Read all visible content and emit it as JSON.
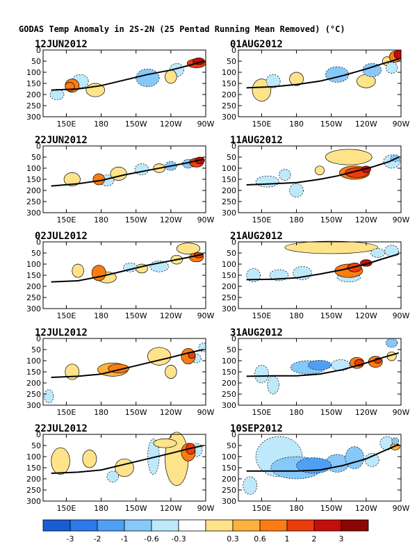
{
  "figure_title": "GODAS Temp Anomaly in 2S-2N (25 Pentad Running Mean Removed) (°C)",
  "colors": {
    "levels": [
      "#1a5cd4",
      "#2e79ea",
      "#4f9ff4",
      "#86c8f8",
      "#bde9fb",
      "#ffffff",
      "#ffe38a",
      "#fdb23e",
      "#fb7d12",
      "#eb3d0c",
      "#c40e0a",
      "#8c0606"
    ],
    "thermocline": "#000000"
  },
  "chart_data": {
    "type": "heatmap",
    "xlabel": "",
    "ylabel": "",
    "x_ticks": [
      "150E",
      "180",
      "150W",
      "120W",
      "90W"
    ],
    "x_tick_lon": [
      150,
      180,
      210,
      240,
      270
    ],
    "xlim": [
      130,
      270
    ],
    "y_ticks": [
      "0",
      "50",
      "100",
      "150",
      "200",
      "250",
      "300"
    ],
    "y_tick_values": [
      0,
      50,
      100,
      150,
      200,
      250,
      300
    ],
    "ylim": [
      0,
      300
    ],
    "colorbar": {
      "boundaries": [
        -3,
        -2,
        -1,
        -0.6,
        -0.3,
        0.3,
        0.6,
        1,
        2,
        3
      ],
      "labels": [
        "-3",
        "-2",
        "-1",
        "-0.6",
        "-0.3",
        "0.3",
        "0.6",
        "1",
        "2",
        "3"
      ]
    },
    "panels": [
      {
        "date": "12JUN2012",
        "thermocline": [
          [
            137,
            180
          ],
          [
            160,
            175
          ],
          [
            180,
            160
          ],
          [
            200,
            135
          ],
          [
            220,
            110
          ],
          [
            240,
            90
          ],
          [
            255,
            70
          ],
          [
            268,
            50
          ]
        ],
        "blobs": [
          [
            142,
            200,
            6,
            24,
            -0.5
          ],
          [
            162,
            140,
            7,
            30,
            -0.5
          ],
          [
            220,
            125,
            10,
            40,
            -1
          ],
          [
            245,
            90,
            6,
            30,
            -0.5
          ],
          [
            155,
            160,
            6,
            30,
            1
          ],
          [
            153,
            165,
            4,
            20,
            1.5
          ],
          [
            175,
            180,
            8,
            30,
            0.5
          ],
          [
            262,
            60,
            8,
            20,
            2.5
          ],
          [
            264,
            50,
            5,
            15,
            3.5
          ],
          [
            240,
            120,
            5,
            30,
            0.5
          ]
        ]
      },
      {
        "date": "01AUG2012",
        "thermocline": [
          [
            137,
            170
          ],
          [
            160,
            165
          ],
          [
            180,
            155
          ],
          [
            200,
            140
          ],
          [
            220,
            115
          ],
          [
            240,
            85
          ],
          [
            255,
            60
          ],
          [
            268,
            40
          ]
        ],
        "blobs": [
          [
            160,
            140,
            6,
            30,
            -0.6
          ],
          [
            215,
            110,
            10,
            35,
            -1
          ],
          [
            245,
            90,
            8,
            30,
            -1
          ],
          [
            262,
            80,
            5,
            25,
            -0.6
          ],
          [
            150,
            180,
            8,
            50,
            0.5
          ],
          [
            180,
            130,
            6,
            30,
            0.5
          ],
          [
            240,
            140,
            8,
            30,
            0.5
          ],
          [
            265,
            30,
            5,
            25,
            1
          ],
          [
            268,
            20,
            4,
            20,
            3
          ],
          [
            258,
            50,
            4,
            20,
            0.5
          ]
        ]
      },
      {
        "date": "22JUN2012",
        "thermocline": [
          [
            137,
            180
          ],
          [
            160,
            170
          ],
          [
            180,
            155
          ],
          [
            200,
            130
          ],
          [
            220,
            110
          ],
          [
            240,
            90
          ],
          [
            255,
            75
          ],
          [
            268,
            60
          ]
        ],
        "blobs": [
          [
            155,
            150,
            7,
            30,
            0.5
          ],
          [
            178,
            150,
            5,
            25,
            1
          ],
          [
            185,
            155,
            6,
            25,
            -0.5
          ],
          [
            215,
            105,
            6,
            25,
            -0.6
          ],
          [
            240,
            90,
            5,
            20,
            -1
          ],
          [
            195,
            125,
            7,
            30,
            0.5
          ],
          [
            230,
            100,
            5,
            20,
            0.5
          ],
          [
            262,
            75,
            6,
            20,
            2
          ],
          [
            265,
            65,
            4,
            15,
            3
          ],
          [
            255,
            80,
            5,
            20,
            -1
          ]
        ]
      },
      {
        "date": "11AUG2012",
        "thermocline": [
          [
            137,
            175
          ],
          [
            160,
            170
          ],
          [
            180,
            165
          ],
          [
            200,
            150
          ],
          [
            215,
            135
          ],
          [
            230,
            115
          ],
          [
            245,
            95
          ],
          [
            260,
            70
          ],
          [
            268,
            50
          ]
        ],
        "blobs": [
          [
            155,
            160,
            10,
            25,
            -0.5
          ],
          [
            170,
            130,
            5,
            25,
            -0.5
          ],
          [
            180,
            200,
            6,
            30,
            -0.5
          ],
          [
            225,
            50,
            20,
            35,
            0.5
          ],
          [
            230,
            120,
            13,
            30,
            1
          ],
          [
            232,
            120,
            10,
            22,
            2
          ],
          [
            240,
            105,
            4,
            15,
            3
          ],
          [
            262,
            70,
            7,
            30,
            -0.6
          ],
          [
            265,
            55,
            4,
            15,
            -1
          ],
          [
            200,
            110,
            4,
            20,
            0.5
          ]
        ]
      },
      {
        "date": "02JUL2012",
        "thermocline": [
          [
            137,
            180
          ],
          [
            160,
            175
          ],
          [
            180,
            155
          ],
          [
            200,
            130
          ],
          [
            220,
            105
          ],
          [
            240,
            85
          ],
          [
            255,
            70
          ],
          [
            268,
            55
          ]
        ],
        "blobs": [
          [
            160,
            130,
            5,
            30,
            0.5
          ],
          [
            178,
            140,
            6,
            35,
            1
          ],
          [
            185,
            160,
            8,
            25,
            0.5
          ],
          [
            205,
            115,
            6,
            20,
            -0.6
          ],
          [
            230,
            110,
            8,
            25,
            -0.6
          ],
          [
            215,
            120,
            5,
            20,
            0.5
          ],
          [
            245,
            80,
            5,
            20,
            0.5
          ],
          [
            262,
            70,
            6,
            20,
            1
          ],
          [
            264,
            60,
            4,
            12,
            2
          ],
          [
            255,
            30,
            10,
            25,
            0.5
          ]
        ]
      },
      {
        "date": "21AUG2012",
        "thermocline": [
          [
            137,
            170
          ],
          [
            160,
            168
          ],
          [
            180,
            162
          ],
          [
            200,
            145
          ],
          [
            220,
            125
          ],
          [
            240,
            100
          ],
          [
            255,
            75
          ],
          [
            268,
            55
          ]
        ],
        "blobs": [
          [
            143,
            150,
            6,
            30,
            -0.5
          ],
          [
            165,
            150,
            8,
            25,
            -0.5
          ],
          [
            185,
            140,
            8,
            30,
            -0.5
          ],
          [
            210,
            25,
            40,
            28,
            0.5
          ],
          [
            225,
            130,
            12,
            30,
            1
          ],
          [
            230,
            115,
            6,
            20,
            2
          ],
          [
            240,
            95,
            5,
            15,
            3
          ],
          [
            250,
            50,
            6,
            20,
            -0.6
          ],
          [
            262,
            40,
            6,
            25,
            -0.5
          ],
          [
            225,
            160,
            10,
            20,
            -0.5
          ]
        ]
      },
      {
        "date": "12JUL2012",
        "thermocline": [
          [
            137,
            175
          ],
          [
            160,
            170
          ],
          [
            180,
            160
          ],
          [
            200,
            135
          ],
          [
            220,
            110
          ],
          [
            240,
            85
          ],
          [
            255,
            65
          ],
          [
            268,
            50
          ]
        ],
        "blobs": [
          [
            135,
            260,
            4,
            30,
            -0.5
          ],
          [
            155,
            150,
            6,
            35,
            0.5
          ],
          [
            190,
            140,
            13,
            30,
            0.6
          ],
          [
            195,
            135,
            9,
            20,
            1
          ],
          [
            230,
            80,
            10,
            40,
            0.5
          ],
          [
            240,
            150,
            5,
            30,
            0.5
          ],
          [
            255,
            80,
            6,
            35,
            1
          ],
          [
            258,
            75,
            3,
            15,
            2
          ],
          [
            262,
            90,
            4,
            20,
            -0.5
          ],
          [
            268,
            40,
            4,
            20,
            -0.5
          ]
        ]
      },
      {
        "date": "31AUG2012",
        "thermocline": [
          [
            137,
            170
          ],
          [
            160,
            168
          ],
          [
            180,
            168
          ],
          [
            200,
            160
          ],
          [
            220,
            140
          ],
          [
            240,
            110
          ],
          [
            255,
            85
          ],
          [
            268,
            65
          ]
        ],
        "blobs": [
          [
            150,
            160,
            6,
            40,
            -0.5
          ],
          [
            160,
            210,
            5,
            40,
            -0.5
          ],
          [
            190,
            130,
            15,
            30,
            -1
          ],
          [
            200,
            120,
            10,
            22,
            -1.5
          ],
          [
            218,
            120,
            8,
            25,
            -0.6
          ],
          [
            232,
            110,
            6,
            25,
            1
          ],
          [
            234,
            110,
            4,
            15,
            2
          ],
          [
            248,
            105,
            6,
            25,
            1
          ],
          [
            250,
            100,
            3,
            12,
            2
          ],
          [
            262,
            80,
            4,
            20,
            0.5
          ],
          [
            262,
            20,
            5,
            20,
            -1
          ]
        ]
      },
      {
        "date": "22JUL2012",
        "thermocline": [
          [
            137,
            175
          ],
          [
            160,
            170
          ],
          [
            180,
            160
          ],
          [
            200,
            135
          ],
          [
            220,
            110
          ],
          [
            240,
            85
          ],
          [
            255,
            65
          ],
          [
            268,
            50
          ]
        ],
        "blobs": [
          [
            145,
            120,
            8,
            60,
            0.5
          ],
          [
            170,
            110,
            6,
            40,
            0.5
          ],
          [
            200,
            150,
            8,
            40,
            0.5
          ],
          [
            225,
            100,
            5,
            80,
            -0.5
          ],
          [
            245,
            110,
            10,
            120,
            0.5
          ],
          [
            255,
            80,
            6,
            40,
            1
          ],
          [
            257,
            65,
            4,
            25,
            2
          ],
          [
            262,
            70,
            5,
            30,
            -0.6
          ],
          [
            235,
            40,
            10,
            20,
            0.5
          ],
          [
            190,
            190,
            5,
            25,
            -0.5
          ]
        ]
      },
      {
        "date": "10SEP2012",
        "thermocline": [
          [
            137,
            165
          ],
          [
            160,
            165
          ],
          [
            180,
            165
          ],
          [
            200,
            160
          ],
          [
            220,
            140
          ],
          [
            240,
            110
          ],
          [
            255,
            75
          ],
          [
            268,
            45
          ]
        ],
        "blobs": [
          [
            165,
            100,
            20,
            90,
            -0.5
          ],
          [
            180,
            150,
            22,
            50,
            -1
          ],
          [
            195,
            140,
            15,
            35,
            -1.5
          ],
          [
            215,
            130,
            10,
            40,
            -1
          ],
          [
            230,
            105,
            8,
            50,
            -1
          ],
          [
            245,
            115,
            6,
            30,
            -0.6
          ],
          [
            258,
            40,
            6,
            30,
            -0.6
          ],
          [
            265,
            30,
            3,
            15,
            -1
          ],
          [
            265,
            55,
            4,
            15,
            0.6
          ],
          [
            140,
            230,
            6,
            40,
            -0.5
          ]
        ]
      }
    ]
  }
}
